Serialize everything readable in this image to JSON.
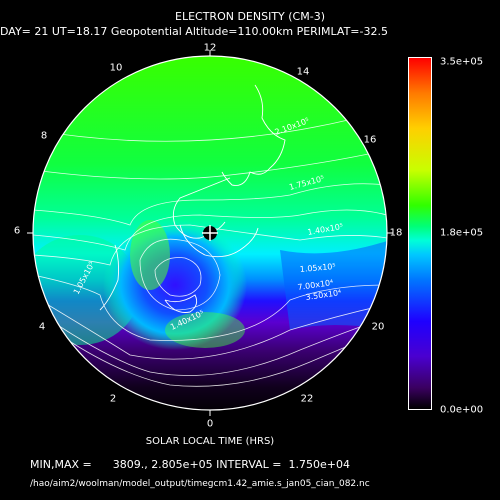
{
  "title": "ELECTRON DENSITY (CM-3)",
  "subtitle": "DAY= 21 UT=18.17 Geopotential Altitude=110.00km PERIMLAT=-32.5",
  "local_time_labels": [
    "12",
    "14",
    "16",
    "18",
    "20",
    "22",
    "0",
    "2",
    "4",
    "6",
    "8",
    "10"
  ],
  "contour_labels": [
    "2.10x10⁵",
    "1.75x10⁵",
    "1.40x10⁵",
    "1.05x10⁵",
    "7.00x10⁴",
    "3.50x10⁴",
    "1.05x10⁵",
    "1.40x10⁵"
  ],
  "colorbar": {
    "max_label": "3.5e+05",
    "mid_label": "1.8e+05",
    "min_label": "0.0e+00"
  },
  "xlabel": "SOLAR LOCAL TIME (HRS)",
  "minmax_line": "MIN,MAX =      3809., 2.805e+05 INTERVAL =  1.750e+04",
  "filepath": "/hao/aim2/woolman/model_output/timegcm1.42_amie.s_jan05_cian_082.nc"
}
